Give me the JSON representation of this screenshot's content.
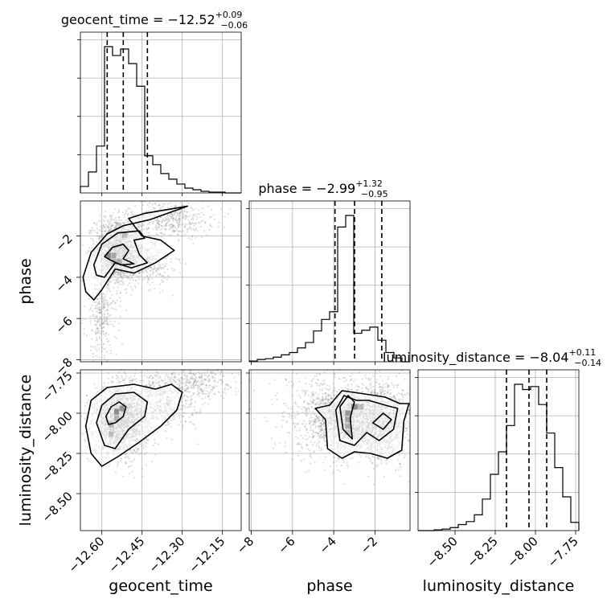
{
  "chart_data": {
    "type": "corner",
    "parameters": [
      "geocent_time",
      "phase",
      "luminosity_distance"
    ],
    "titles": [
      {
        "param": "geocent_time",
        "text": "geocent_time = −12.52",
        "plus": "+0.09",
        "minus": "−0.06"
      },
      {
        "param": "phase",
        "text": "phase = −2.99",
        "plus": "+1.32",
        "minus": "−0.95"
      },
      {
        "param": "luminosity_distance",
        "text": "luminosity_distance = −8.04",
        "plus": "+0.11",
        "minus": "−0.14"
      }
    ],
    "axis_labels": {
      "geocent_time": "geocent_time",
      "phase": "phase",
      "luminosity_distance": "luminosity_distance"
    },
    "ranges": {
      "geocent_time": [
        -12.68,
        -12.08
      ],
      "phase": [
        -8.1,
        -0.3
      ],
      "luminosity_distance": [
        -8.73,
        -7.73
      ]
    },
    "ticks": {
      "geocent_time": [
        "−12.60",
        "−12.45",
        "−12.30",
        "−12.15"
      ],
      "phase": [
        "−8",
        "−6",
        "−4",
        "−2"
      ],
      "luminosity_distance": [
        "−8.50",
        "−8.25",
        "−8.00",
        "−7.75"
      ]
    },
    "tick_values": {
      "geocent_time": [
        -12.6,
        -12.45,
        -12.3,
        -12.15
      ],
      "phase": [
        -8,
        -6,
        -4,
        -2
      ],
      "luminosity_distance": [
        -8.5,
        -8.25,
        -8.0,
        -7.75
      ]
    },
    "quantiles": {
      "geocent_time": [
        -12.58,
        -12.52,
        -12.43
      ],
      "phase": [
        -3.94,
        -2.99,
        -1.67
      ],
      "luminosity_distance": [
        -8.18,
        -8.04,
        -7.93
      ]
    },
    "histograms": {
      "geocent_time": {
        "edges": [
          -12.68,
          -12.65,
          -12.62,
          -12.59,
          -12.56,
          -12.53,
          -12.5,
          -12.47,
          -12.44,
          -12.41,
          -12.38,
          -12.35,
          -12.32,
          -12.29,
          -12.26,
          -12.23,
          -12.2,
          -12.17,
          -12.14,
          -12.11,
          -12.08
        ],
        "counts": [
          8,
          26,
          58,
          181,
          170,
          178,
          160,
          132,
          46,
          35,
          24,
          17,
          11,
          6,
          4,
          2,
          1,
          1,
          0,
          0
        ]
      },
      "phase": {
        "edges": [
          -8.1,
          -7.71,
          -7.32,
          -6.93,
          -6.54,
          -6.15,
          -5.76,
          -5.37,
          -4.98,
          -4.59,
          -4.2,
          -3.81,
          -3.42,
          -3.03,
          -2.64,
          -2.25,
          -1.86,
          -1.47,
          -1.08,
          -0.69,
          -0.3
        ],
        "counts": [
          1,
          3,
          4,
          6,
          9,
          12,
          18,
          25,
          40,
          55,
          65,
          175,
          190,
          37,
          41,
          45,
          28,
          12,
          5,
          0
        ]
      },
      "luminosity_distance": {
        "edges": [
          -8.73,
          -8.68,
          -8.63,
          -8.58,
          -8.53,
          -8.48,
          -8.43,
          -8.38,
          -8.33,
          -8.28,
          -8.23,
          -8.18,
          -8.13,
          -8.08,
          -8.03,
          -7.98,
          -7.93,
          -7.88,
          -7.83,
          -7.78,
          -7.73
        ],
        "counts": [
          0,
          0,
          1,
          2,
          4,
          8,
          12,
          21,
          42,
          75,
          105,
          140,
          195,
          188,
          192,
          168,
          130,
          84,
          45,
          11
        ]
      }
    },
    "grid": true
  }
}
